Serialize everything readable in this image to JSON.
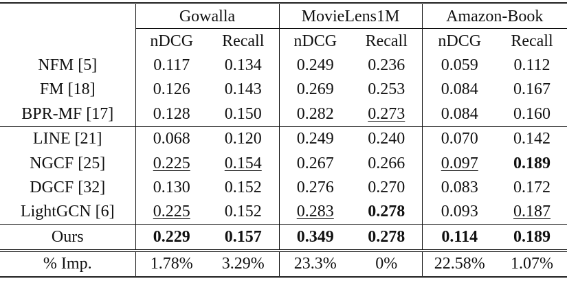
{
  "datasets": [
    "Gowalla",
    "MovieLens1M",
    "Amazon-Book"
  ],
  "metrics": [
    "nDCG",
    "Recall",
    "nDCG",
    "Recall",
    "nDCG",
    "Recall"
  ],
  "rows": [
    {
      "method": "NFM [5]",
      "values": [
        "0.117",
        "0.134",
        "0.249",
        "0.236",
        "0.059",
        "0.112"
      ],
      "bold": [
        false,
        false,
        false,
        false,
        false,
        false
      ],
      "underline": [
        false,
        false,
        false,
        false,
        false,
        false
      ]
    },
    {
      "method": "FM [18]",
      "values": [
        "0.126",
        "0.143",
        "0.269",
        "0.253",
        "0.084",
        "0.167"
      ],
      "bold": [
        false,
        false,
        false,
        false,
        false,
        false
      ],
      "underline": [
        false,
        false,
        false,
        false,
        false,
        false
      ]
    },
    {
      "method": "BPR-MF [17]",
      "values": [
        "0.128",
        "0.150",
        "0.282",
        "0.273",
        "0.084",
        "0.160"
      ],
      "bold": [
        false,
        false,
        false,
        false,
        false,
        false
      ],
      "underline": [
        false,
        false,
        false,
        true,
        false,
        false
      ]
    },
    {
      "method": "LINE [21]",
      "values": [
        "0.068",
        "0.120",
        "0.249",
        "0.240",
        "0.070",
        "0.142"
      ],
      "bold": [
        false,
        false,
        false,
        false,
        false,
        false
      ],
      "underline": [
        false,
        false,
        false,
        false,
        false,
        false
      ]
    },
    {
      "method": "NGCF [25]",
      "values": [
        "0.225",
        "0.154",
        "0.267",
        "0.266",
        "0.097",
        "0.189"
      ],
      "bold": [
        false,
        false,
        false,
        false,
        false,
        true
      ],
      "underline": [
        true,
        true,
        false,
        false,
        true,
        false
      ]
    },
    {
      "method": "DGCF [32]",
      "values": [
        "0.130",
        "0.152",
        "0.276",
        "0.270",
        "0.083",
        "0.172"
      ],
      "bold": [
        false,
        false,
        false,
        false,
        false,
        false
      ],
      "underline": [
        false,
        false,
        false,
        false,
        false,
        false
      ]
    },
    {
      "method": "LightGCN [6]",
      "values": [
        "0.225",
        "0.152",
        "0.283",
        "0.278",
        "0.093",
        "0.187"
      ],
      "bold": [
        false,
        false,
        false,
        true,
        false,
        false
      ],
      "underline": [
        true,
        false,
        true,
        false,
        false,
        true
      ]
    }
  ],
  "ours": {
    "method": "Ours",
    "values": [
      "0.229",
      "0.157",
      "0.349",
      "0.278",
      "0.114",
      "0.189"
    ]
  },
  "improvement": {
    "label": "% Imp.",
    "values": [
      "1.78%",
      "3.29%",
      "23.3%",
      "0%",
      "22.58%",
      "1.07%"
    ]
  }
}
